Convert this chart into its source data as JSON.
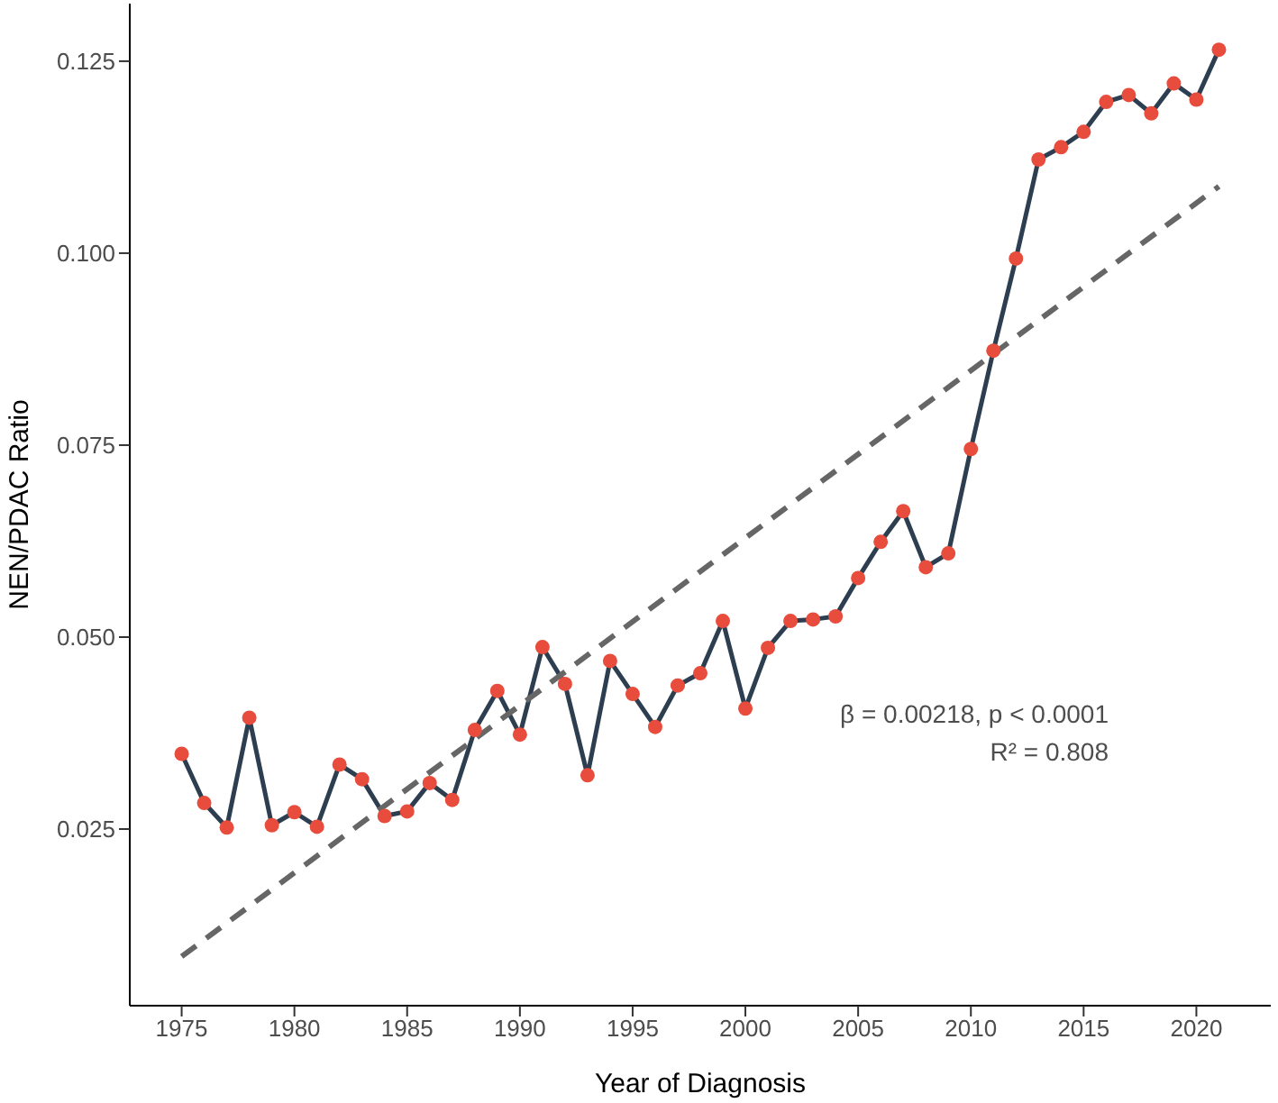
{
  "chart_data": {
    "type": "line",
    "xlabel": "Year of Diagnosis",
    "ylabel": "NEN/PDAC Ratio",
    "x": [
      1975,
      1976,
      1977,
      1978,
      1979,
      1980,
      1981,
      1982,
      1983,
      1984,
      1985,
      1986,
      1987,
      1988,
      1989,
      1990,
      1991,
      1992,
      1993,
      1994,
      1995,
      1996,
      1997,
      1998,
      1999,
      2000,
      2001,
      2002,
      2003,
      2004,
      2005,
      2006,
      2007,
      2008,
      2009,
      2010,
      2011,
      2012,
      2013,
      2014,
      2015,
      2016,
      2017,
      2018,
      2019,
      2020,
      2021
    ],
    "series": [
      {
        "color": "#2c3e50",
        "marker": "circle",
        "colors": [
          "#e74c3c",
          "#e74c3c",
          "#e74c3c",
          "#e74c3c",
          "#e74c3c",
          "#e74c3c",
          "#e74c3c",
          "#e74c3c",
          "#e74c3c",
          "#e74c3c",
          "#e74c3c",
          "#e74c3c",
          "#e74c3c",
          "#e74c3c",
          "#e74c3c",
          "#e74c3c",
          "#e74c3c",
          "#e74c3c",
          "#e74c3c",
          "#e74c3c",
          "#e74c3c",
          "#e74c3c",
          "#e74c3c",
          "#e74c3c",
          "#e74c3c",
          "#e74c3c",
          "#e74c3c",
          "#e74c3c",
          "#e74c3c",
          "#e74c3c",
          "#e74c3c",
          "#e74c3c",
          "#e74c3c",
          "#e74c3c",
          "#e74c3c",
          "#e74c3c",
          "#e74c3c",
          "#e74c3c",
          "#e74c3c",
          "#e74c3c",
          "#e74c3c",
          "#e74c3c",
          "#e74c3c",
          "#e74c3c",
          "#e74c3c",
          "#e74c3c",
          "#e74c3c"
        ],
        "values": [
          0.0348,
          0.0284,
          0.0252,
          0.0395,
          0.0255,
          0.0272,
          0.0253,
          0.0334,
          0.0315,
          0.0267,
          0.0273,
          0.031,
          0.0288,
          0.0379,
          0.043,
          0.0373,
          0.0487,
          0.0439,
          0.032,
          0.0469,
          0.0426,
          0.0383,
          0.0437,
          0.0453,
          0.0521,
          0.0407,
          0.0486,
          0.0521,
          0.0523,
          0.0527,
          0.0577,
          0.0624,
          0.0664,
          0.0591,
          0.0609,
          0.0745,
          0.0873,
          0.0993,
          0.1122,
          0.1138,
          0.1158,
          0.1197,
          0.1206,
          0.1182,
          0.1221,
          0.12,
          0.1265
        ]
      },
      {
        "type": "line",
        "x": [
          1975,
          2021
        ],
        "values": [
          0.0084,
          0.1087
        ],
        "color": "#666666",
        "line_style": "dashed",
        "marker": "none"
      }
    ],
    "xlim": [
      1972.7,
      2023.3
    ],
    "xticks": [
      1975,
      1980,
      1985,
      1990,
      1995,
      2000,
      2005,
      2010,
      2015,
      2020
    ],
    "ylim": [
      0.002,
      0.1325
    ],
    "yticks": [
      {
        "value": 0.025,
        "label": "0.025"
      },
      {
        "value": 0.05,
        "label": "0.050"
      },
      {
        "value": 0.075,
        "label": "0.075"
      },
      {
        "value": 0.1,
        "label": "0.100"
      },
      {
        "value": 0.125,
        "label": "0.125"
      }
    ],
    "grid": false,
    "annotations": [
      "β = 0.00218, p < 0.0001",
      "R² = 0.808"
    ]
  }
}
